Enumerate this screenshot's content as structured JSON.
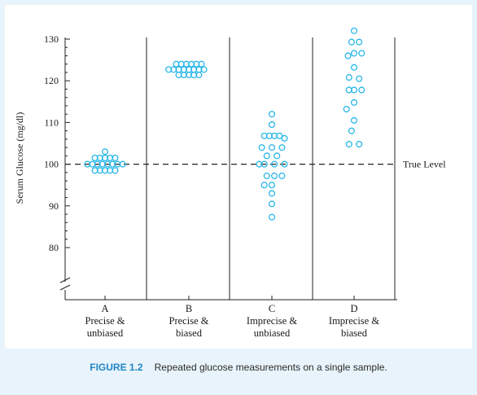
{
  "chart_data": {
    "type": "scatter",
    "ylabel": "Serum Glucose (mg/dl)",
    "ylim": [
      75,
      132
    ],
    "yticks": [
      80,
      90,
      100,
      110,
      120,
      130
    ],
    "axis_break": true,
    "reference_line": {
      "value": 100,
      "label": "True Level",
      "style": "dashed"
    },
    "marker_color": "#29b7e8",
    "categories": [
      {
        "letter": "A",
        "line1": "Precise &",
        "line2": "unbiased"
      },
      {
        "letter": "B",
        "line1": "Precise &",
        "line2": "biased"
      },
      {
        "letter": "C",
        "line1": "Imprecise &",
        "line2": "unbiased"
      },
      {
        "letter": "D",
        "line1": "Imprecise &",
        "line2": "biased"
      }
    ],
    "points": [
      [
        {
          "x": -3.5,
          "y": 100
        },
        {
          "x": -2.5,
          "y": 100
        },
        {
          "x": -1.5,
          "y": 100
        },
        {
          "x": -0.5,
          "y": 100
        },
        {
          "x": 0.5,
          "y": 100
        },
        {
          "x": 1.5,
          "y": 100
        },
        {
          "x": 2.5,
          "y": 100
        },
        {
          "x": 3.5,
          "y": 100
        },
        {
          "x": -2,
          "y": 101.5
        },
        {
          "x": -1,
          "y": 101.5
        },
        {
          "x": 0,
          "y": 101.5
        },
        {
          "x": 1,
          "y": 101.5
        },
        {
          "x": 2,
          "y": 101.5
        },
        {
          "x": -2,
          "y": 98.5
        },
        {
          "x": -1,
          "y": 98.5
        },
        {
          "x": 0,
          "y": 98.5
        },
        {
          "x": 1,
          "y": 98.5
        },
        {
          "x": 2,
          "y": 98.5
        },
        {
          "x": 0,
          "y": 103
        }
      ],
      [
        {
          "x": -2.5,
          "y": 124
        },
        {
          "x": -1.5,
          "y": 124
        },
        {
          "x": -0.5,
          "y": 124
        },
        {
          "x": 0.5,
          "y": 124
        },
        {
          "x": 1.5,
          "y": 124
        },
        {
          "x": 2.5,
          "y": 124
        },
        {
          "x": -4,
          "y": 122.7
        },
        {
          "x": -3,
          "y": 122.7
        },
        {
          "x": -2,
          "y": 122.7
        },
        {
          "x": -1,
          "y": 122.7
        },
        {
          "x": 0,
          "y": 122.7
        },
        {
          "x": 1,
          "y": 122.7
        },
        {
          "x": 2,
          "y": 122.7
        },
        {
          "x": 3,
          "y": 122.7
        },
        {
          "x": -2,
          "y": 121.4
        },
        {
          "x": -1,
          "y": 121.4
        },
        {
          "x": 0,
          "y": 121.4
        },
        {
          "x": 1,
          "y": 121.4
        },
        {
          "x": 2,
          "y": 121.4
        }
      ],
      [
        {
          "x": 0,
          "y": 112
        },
        {
          "x": 0,
          "y": 109.5
        },
        {
          "x": -0.5,
          "y": 106.8
        },
        {
          "x": 0.5,
          "y": 106.8
        },
        {
          "x": -1.5,
          "y": 106.8
        },
        {
          "x": 1.5,
          "y": 106.8
        },
        {
          "x": 2.5,
          "y": 106.2
        },
        {
          "x": -2,
          "y": 104
        },
        {
          "x": 0,
          "y": 104
        },
        {
          "x": 2,
          "y": 104
        },
        {
          "x": -1,
          "y": 102
        },
        {
          "x": 1,
          "y": 102
        },
        {
          "x": -2.5,
          "y": 100
        },
        {
          "x": -1.5,
          "y": 100
        },
        {
          "x": 0.5,
          "y": 100
        },
        {
          "x": 2.5,
          "y": 100
        },
        {
          "x": -1,
          "y": 97.2
        },
        {
          "x": 0.5,
          "y": 97.2
        },
        {
          "x": 2,
          "y": 97.2
        },
        {
          "x": -1.5,
          "y": 95
        },
        {
          "x": 0,
          "y": 95
        },
        {
          "x": 0,
          "y": 93
        },
        {
          "x": 0,
          "y": 90.5
        },
        {
          "x": 0,
          "y": 87.3
        }
      ],
      [
        {
          "x": 0,
          "y": 132
        },
        {
          "x": -0.5,
          "y": 129.3
        },
        {
          "x": 1,
          "y": 129.3
        },
        {
          "x": -1.2,
          "y": 126
        },
        {
          "x": 0,
          "y": 126.6
        },
        {
          "x": 1.5,
          "y": 126.6
        },
        {
          "x": 0,
          "y": 123.2
        },
        {
          "x": -1,
          "y": 120.8
        },
        {
          "x": 1,
          "y": 120.5
        },
        {
          "x": -1,
          "y": 117.8
        },
        {
          "x": 0,
          "y": 117.8
        },
        {
          "x": 1.5,
          "y": 117.8
        },
        {
          "x": 0,
          "y": 114.8
        },
        {
          "x": -1.5,
          "y": 113.2
        },
        {
          "x": 0,
          "y": 110.5
        },
        {
          "x": -0.5,
          "y": 108
        },
        {
          "x": -1,
          "y": 104.8
        },
        {
          "x": 1,
          "y": 104.8
        }
      ]
    ]
  },
  "caption": {
    "label": "FIGURE 1.2",
    "text": "Repeated glucose measurements on a single sample."
  }
}
